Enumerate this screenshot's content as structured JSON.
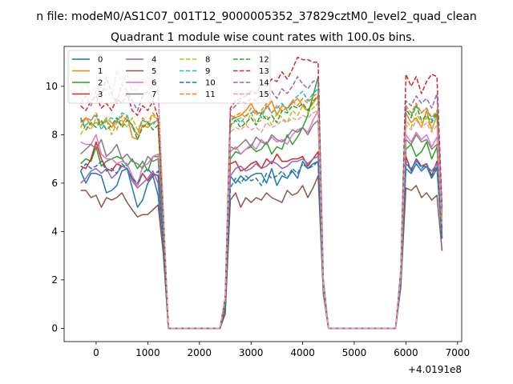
{
  "chart_data": {
    "type": "line",
    "suptitle": "n file: modeM0/AS1C07_001T12_9000005352_37829cztM0_level2_quad_clean",
    "title": "Quadrant 1 module wise count rates with 100.0s bins.",
    "offset_text": "+4.0191e8",
    "xlim": [
      -620,
      7080
    ],
    "ylim": [
      -0.55,
      11.65
    ],
    "xticks": [
      0,
      1000,
      2000,
      3000,
      4000,
      5000,
      6000,
      7000
    ],
    "yticks": [
      0,
      2,
      4,
      6,
      8,
      10
    ],
    "x": [
      -300,
      -200,
      -100,
      0,
      100,
      200,
      300,
      400,
      500,
      600,
      700,
      800,
      900,
      1000,
      1100,
      1200,
      1300,
      1400,
      1500,
      1600,
      1700,
      1800,
      1900,
      2000,
      2100,
      2200,
      2300,
      2400,
      2500,
      2600,
      2700,
      2800,
      2900,
      3000,
      3100,
      3200,
      3300,
      3400,
      3500,
      3600,
      3700,
      3800,
      3900,
      4000,
      4100,
      4200,
      4300,
      4400,
      4500,
      4600,
      4700,
      4800,
      4900,
      5000,
      5100,
      5200,
      5300,
      5400,
      5500,
      5600,
      5700,
      5800,
      5900,
      6000,
      6100,
      6200,
      6300,
      6400,
      6500,
      6600,
      6700
    ],
    "legend": {
      "location": "upper-left",
      "columns": 4
    },
    "series": [
      {
        "name": "0",
        "color": "#1f77b4",
        "dash": false,
        "values": [
          6.5,
          6.0,
          6.4,
          6.4,
          6.3,
          5.6,
          5.7,
          5.9,
          6.5,
          6.6,
          5.8,
          5.0,
          5.3,
          6.0,
          6.3,
          5.5,
          3.5,
          0,
          0,
          0,
          0,
          0,
          0,
          0,
          0,
          0,
          0,
          0,
          0.7,
          6.3,
          6.0,
          6.3,
          6.1,
          6.3,
          6.4,
          6.4,
          6.0,
          6.6,
          5.9,
          6.3,
          6.2,
          6.5,
          6.2,
          6.9,
          6.6,
          6.8,
          6.9,
          1.5,
          0,
          0,
          0,
          0,
          0,
          0,
          0,
          0,
          0,
          0,
          0,
          0,
          0,
          0,
          1.8,
          6.6,
          6.4,
          6.8,
          6.5,
          6.7,
          6.2,
          6.6,
          3.7
        ]
      },
      {
        "name": "1",
        "color": "#ff7f0e",
        "dash": false,
        "values": [
          8.5,
          8.7,
          8.4,
          8.5,
          8.4,
          8.6,
          8.3,
          8.6,
          8.4,
          8.8,
          7.9,
          7.8,
          8.4,
          8.3,
          8.5,
          8.6,
          4.5,
          0,
          0,
          0,
          0,
          0,
          0,
          0,
          0,
          0,
          0,
          0,
          1.2,
          8.8,
          8.7,
          8.8,
          9.0,
          9.3,
          8.9,
          8.9,
          9.1,
          9.4,
          8.8,
          9.2,
          9.1,
          9.3,
          9.5,
          9.2,
          9.0,
          9.3,
          9.6,
          1.8,
          0,
          0,
          0,
          0,
          0,
          0,
          0,
          0,
          0,
          0,
          0,
          0,
          0,
          0,
          2.3,
          8.9,
          8.5,
          8.7,
          8.3,
          9.0,
          8.2,
          8.8,
          4.5
        ]
      },
      {
        "name": "2",
        "color": "#2ca02c",
        "dash": false,
        "values": [
          6.8,
          7.0,
          6.9,
          7.5,
          6.7,
          6.9,
          7.0,
          7.1,
          7.0,
          6.7,
          7.0,
          6.6,
          6.9,
          6.5,
          7.1,
          7.1,
          3.9,
          0,
          0,
          0,
          0,
          0,
          0,
          0,
          0,
          0,
          0,
          0,
          0.9,
          7.0,
          7.3,
          7.2,
          7.4,
          7.5,
          7.3,
          7.4,
          7.7,
          7.2,
          7.5,
          7.4,
          8.0,
          7.6,
          7.9,
          8.3,
          8.8,
          9.6,
          10.4,
          1.7,
          0,
          0,
          0,
          0,
          0,
          0,
          0,
          0,
          0,
          0,
          0,
          0,
          0,
          0,
          2.0,
          7.4,
          7.6,
          7.1,
          7.3,
          7.7,
          7.0,
          7.5,
          4.2
        ]
      },
      {
        "name": "3",
        "color": "#d62728",
        "dash": false,
        "values": [
          6.7,
          6.6,
          7.0,
          7.7,
          7.0,
          6.6,
          6.5,
          6.8,
          6.7,
          6.6,
          6.2,
          5.9,
          6.4,
          6.1,
          6.4,
          6.3,
          3.6,
          0,
          0,
          0,
          0,
          0,
          0,
          0,
          0,
          0,
          0,
          0,
          0.8,
          6.8,
          6.9,
          6.5,
          6.6,
          6.8,
          6.9,
          6.6,
          7.0,
          6.8,
          7.2,
          6.9,
          6.9,
          7.0,
          7.0,
          7.1,
          6.7,
          7.0,
          7.3,
          1.5,
          0,
          0,
          0,
          0,
          0,
          0,
          0,
          0,
          0,
          0,
          0,
          0,
          0,
          0,
          1.9,
          7.1,
          6.5,
          7.0,
          6.7,
          6.8,
          6.3,
          6.9,
          3.8
        ]
      },
      {
        "name": "4",
        "color": "#9467bd",
        "dash": false,
        "values": [
          6.0,
          6.2,
          6.5,
          6.6,
          6.4,
          6.6,
          6.2,
          6.4,
          6.7,
          6.6,
          6.1,
          5.8,
          6.0,
          6.2,
          6.5,
          6.0,
          3.5,
          0,
          0,
          0,
          0,
          0,
          0,
          0,
          0,
          0,
          0,
          0,
          0.8,
          6.3,
          6.6,
          6.7,
          6.5,
          6.6,
          6.8,
          6.6,
          6.7,
          6.9,
          6.8,
          6.6,
          6.7,
          6.9,
          6.9,
          7.0,
          6.8,
          7.0,
          7.1,
          1.5,
          0,
          0,
          0,
          0,
          0,
          0,
          0,
          0,
          0,
          0,
          0,
          0,
          0,
          0,
          1.9,
          6.8,
          6.6,
          6.9,
          6.7,
          6.7,
          6.5,
          6.8,
          3.8
        ]
      },
      {
        "name": "5",
        "color": "#8c564b",
        "dash": false,
        "values": [
          5.7,
          5.7,
          5.4,
          5.5,
          5.0,
          5.4,
          5.3,
          5.4,
          5.6,
          5.2,
          4.9,
          4.6,
          4.7,
          4.7,
          4.9,
          5.1,
          3.1,
          0,
          0,
          0,
          0,
          0,
          0,
          0,
          0,
          0,
          0,
          0,
          0.6,
          5.3,
          5.6,
          5.0,
          5.4,
          5.2,
          5.4,
          5.3,
          5.6,
          5.4,
          5.3,
          5.2,
          5.7,
          5.5,
          5.6,
          5.9,
          5.4,
          5.8,
          6.3,
          1.4,
          0,
          0,
          0,
          0,
          0,
          0,
          0,
          0,
          0,
          0,
          0,
          0,
          0,
          0,
          1.7,
          5.8,
          5.7,
          5.9,
          5.4,
          5.6,
          5.3,
          5.5,
          3.2
        ]
      },
      {
        "name": "6",
        "color": "#e377c2",
        "dash": false,
        "values": [
          7.7,
          7.6,
          7.6,
          8.0,
          7.2,
          7.0,
          7.0,
          6.8,
          6.9,
          6.8,
          6.3,
          5.9,
          6.7,
          6.8,
          7.1,
          7.2,
          4.0,
          0,
          0,
          0,
          0,
          0,
          0,
          0,
          0,
          0,
          0,
          0,
          1.0,
          7.3,
          7.5,
          7.2,
          7.4,
          7.6,
          7.4,
          7.8,
          7.6,
          7.9,
          7.7,
          7.8,
          7.6,
          8.0,
          8.2,
          8.3,
          8.1,
          8.6,
          9.0,
          1.6,
          0,
          0,
          0,
          0,
          0,
          0,
          0,
          0,
          0,
          0,
          0,
          0,
          0,
          0,
          2.1,
          8.0,
          7.7,
          8.1,
          7.8,
          8.0,
          7.5,
          7.9,
          4.1
        ]
      },
      {
        "name": "7",
        "color": "#7f7f7f",
        "dash": false,
        "values": [
          7.2,
          7.4,
          7.6,
          7.4,
          7.8,
          7.1,
          7.3,
          7.6,
          7.0,
          7.2,
          6.9,
          6.8,
          6.6,
          7.1,
          6.9,
          7.0,
          4.0,
          0,
          0,
          0,
          0,
          0,
          0,
          0,
          0,
          0,
          0,
          0,
          1.0,
          7.5,
          7.4,
          7.6,
          7.8,
          7.5,
          7.9,
          7.7,
          7.6,
          8.0,
          7.8,
          7.7,
          7.9,
          8.2,
          8.1,
          8.3,
          8.0,
          8.4,
          8.6,
          1.6,
          0,
          0,
          0,
          0,
          0,
          0,
          0,
          0,
          0,
          0,
          0,
          0,
          0,
          0,
          2.0,
          7.8,
          7.6,
          8.0,
          7.7,
          7.8,
          7.4,
          7.6,
          4.1
        ]
      },
      {
        "name": "8",
        "color": "#bcbd22",
        "dash": true,
        "values": [
          8.0,
          8.4,
          8.2,
          8.7,
          8.5,
          8.6,
          8.0,
          8.5,
          8.6,
          8.3,
          8.7,
          8.2,
          8.6,
          8.4,
          8.8,
          8.6,
          4.6,
          0,
          0,
          0,
          0,
          0,
          0,
          0,
          0,
          0,
          0,
          0,
          1.2,
          8.3,
          8.6,
          8.7,
          8.4,
          8.9,
          8.5,
          8.6,
          8.8,
          8.4,
          8.9,
          8.7,
          8.5,
          9.0,
          8.8,
          9.2,
          8.9,
          9.1,
          9.3,
          1.8,
          0,
          0,
          0,
          0,
          0,
          0,
          0,
          0,
          0,
          0,
          0,
          0,
          0,
          0,
          2.2,
          8.6,
          8.3,
          8.9,
          8.5,
          8.7,
          8.2,
          8.8,
          4.5
        ]
      },
      {
        "name": "9",
        "color": "#17becf",
        "dash": true,
        "values": [
          8.6,
          8.4,
          8.6,
          8.8,
          8.2,
          8.6,
          8.7,
          8.5,
          8.9,
          8.8,
          8.3,
          8.0,
          8.6,
          8.5,
          8.4,
          8.7,
          4.5,
          0,
          0,
          0,
          0,
          0,
          0,
          0,
          0,
          0,
          0,
          0,
          1.1,
          8.6,
          8.7,
          8.5,
          8.8,
          8.9,
          9.0,
          8.7,
          9.2,
          8.9,
          9.1,
          9.3,
          9.0,
          9.4,
          9.6,
          9.8,
          9.4,
          9.7,
          9.9,
          1.8,
          0,
          0,
          0,
          0,
          0,
          0,
          0,
          0,
          0,
          0,
          0,
          0,
          0,
          0,
          2.2,
          9.0,
          8.8,
          9.2,
          8.9,
          9.1,
          8.6,
          9.0,
          4.6
        ]
      },
      {
        "name": "10",
        "color": "#1f77b4",
        "dash": true,
        "values": [
          6.5,
          6.8,
          6.6,
          6.7,
          6.9,
          6.5,
          6.6,
          6.4,
          6.8,
          6.6,
          6.2,
          6.0,
          6.4,
          6.6,
          6.3,
          6.5,
          3.5,
          0,
          0,
          0,
          0,
          0,
          0,
          0,
          0,
          0,
          0,
          0,
          0.8,
          5.8,
          6.2,
          6.0,
          6.3,
          6.1,
          6.2,
          5.9,
          6.4,
          6.2,
          6.3,
          6.5,
          6.2,
          6.6,
          6.4,
          6.8,
          6.6,
          6.7,
          6.9,
          1.5,
          0,
          0,
          0,
          0,
          0,
          0,
          0,
          0,
          0,
          0,
          0,
          0,
          0,
          0,
          1.8,
          6.9,
          6.5,
          7.0,
          6.6,
          6.8,
          6.3,
          6.7,
          3.7
        ]
      },
      {
        "name": "11",
        "color": "#ff7f0e",
        "dash": true,
        "values": [
          8.3,
          8.7,
          8.6,
          8.9,
          8.4,
          8.7,
          8.5,
          8.2,
          8.8,
          8.6,
          8.4,
          8.0,
          8.7,
          8.5,
          8.9,
          8.6,
          4.6,
          0,
          0,
          0,
          0,
          0,
          0,
          0,
          0,
          0,
          0,
          0,
          1.2,
          8.6,
          8.8,
          8.9,
          8.7,
          9.1,
          8.8,
          9.0,
          9.3,
          8.9,
          9.2,
          9.0,
          9.1,
          9.4,
          9.2,
          9.5,
          9.3,
          9.6,
          9.7,
          1.8,
          0,
          0,
          0,
          0,
          0,
          0,
          0,
          0,
          0,
          0,
          0,
          0,
          0,
          0,
          2.3,
          9.2,
          8.9,
          9.3,
          8.9,
          9.1,
          8.7,
          9.0,
          4.6
        ]
      },
      {
        "name": "12",
        "color": "#2ca02c",
        "dash": true,
        "values": [
          8.7,
          8.2,
          8.5,
          8.3,
          8.6,
          8.2,
          8.4,
          8.7,
          8.3,
          8.6,
          8.4,
          7.8,
          8.3,
          8.5,
          8.2,
          8.4,
          4.4,
          0,
          0,
          0,
          0,
          0,
          0,
          0,
          0,
          0,
          0,
          0,
          1.1,
          8.4,
          8.6,
          8.3,
          8.5,
          8.7,
          8.4,
          8.9,
          8.6,
          8.8,
          8.5,
          9.0,
          8.9,
          9.2,
          9.1,
          9.3,
          9.0,
          9.4,
          9.6,
          1.7,
          0,
          0,
          0,
          0,
          0,
          0,
          0,
          0,
          0,
          0,
          0,
          0,
          0,
          0,
          2.2,
          9.1,
          8.7,
          9.2,
          8.6,
          8.8,
          8.5,
          8.9,
          4.4
        ]
      },
      {
        "name": "13",
        "color": "#d62728",
        "dash": true,
        "values": [
          9.2,
          9.0,
          9.4,
          9.6,
          9.1,
          9.3,
          9.0,
          9.5,
          9.3,
          9.7,
          9.0,
          8.8,
          9.2,
          9.0,
          9.4,
          8.7,
          4.8,
          0,
          0,
          0,
          0,
          0,
          0,
          0,
          0,
          0,
          0,
          0,
          1.3,
          9.1,
          9.4,
          9.5,
          9.6,
          9.8,
          9.7,
          10.1,
          10.0,
          10.3,
          10.2,
          10.6,
          10.3,
          10.7,
          11.2,
          11.1,
          11.1,
          11.0,
          11.0,
          2.0,
          0,
          0,
          0,
          0,
          0,
          0,
          0,
          0,
          0,
          0,
          0,
          0,
          0,
          0,
          2.4,
          10.5,
          10.0,
          10.4,
          9.7,
          10.2,
          10.5,
          10.4,
          5.0
        ]
      },
      {
        "name": "14",
        "color": "#9467bd",
        "dash": true,
        "values": [
          9.3,
          9.6,
          9.2,
          9.8,
          9.5,
          10.4,
          9.7,
          9.3,
          10.1,
          9.8,
          9.4,
          9.0,
          9.6,
          9.8,
          9.5,
          9.9,
          4.9,
          0,
          0,
          0,
          0,
          0,
          0,
          0,
          0,
          0,
          0,
          0,
          1.3,
          9.0,
          9.2,
          9.4,
          9.3,
          9.5,
          9.4,
          9.7,
          9.6,
          9.8,
          9.5,
          9.9,
          9.7,
          10.0,
          10.4,
          10.1,
          9.9,
          10.2,
          10.3,
          2.0,
          0,
          0,
          0,
          0,
          0,
          0,
          0,
          0,
          0,
          0,
          0,
          0,
          0,
          0,
          2.4,
          9.4,
          9.2,
          9.6,
          9.3,
          9.5,
          9.1,
          9.7,
          4.8
        ]
      },
      {
        "name": "15",
        "color": "#e7a0a0",
        "dash": true,
        "values": [
          9.8,
          10.2,
          9.6,
          10.0,
          9.7,
          9.9,
          9.5,
          10.7,
          10.1,
          10.5,
          9.8,
          9.9,
          10.3,
          10.0,
          9.9,
          10.1,
          5.0,
          0,
          0,
          0,
          0,
          0,
          0,
          0,
          0,
          0,
          0,
          0,
          1.3,
          8.1,
          8.3,
          8.2,
          8.4,
          8.2,
          8.3,
          8.1,
          8.5,
          8.3,
          8.4,
          8.6,
          8.5,
          8.7,
          8.6,
          8.8,
          8.7,
          8.9,
          9.0,
          1.7,
          0,
          0,
          0,
          0,
          0,
          0,
          0,
          0,
          0,
          0,
          0,
          0,
          0,
          0,
          2.2,
          8.4,
          8.2,
          8.6,
          8.3,
          8.5,
          8.1,
          8.4,
          4.3
        ]
      }
    ]
  }
}
